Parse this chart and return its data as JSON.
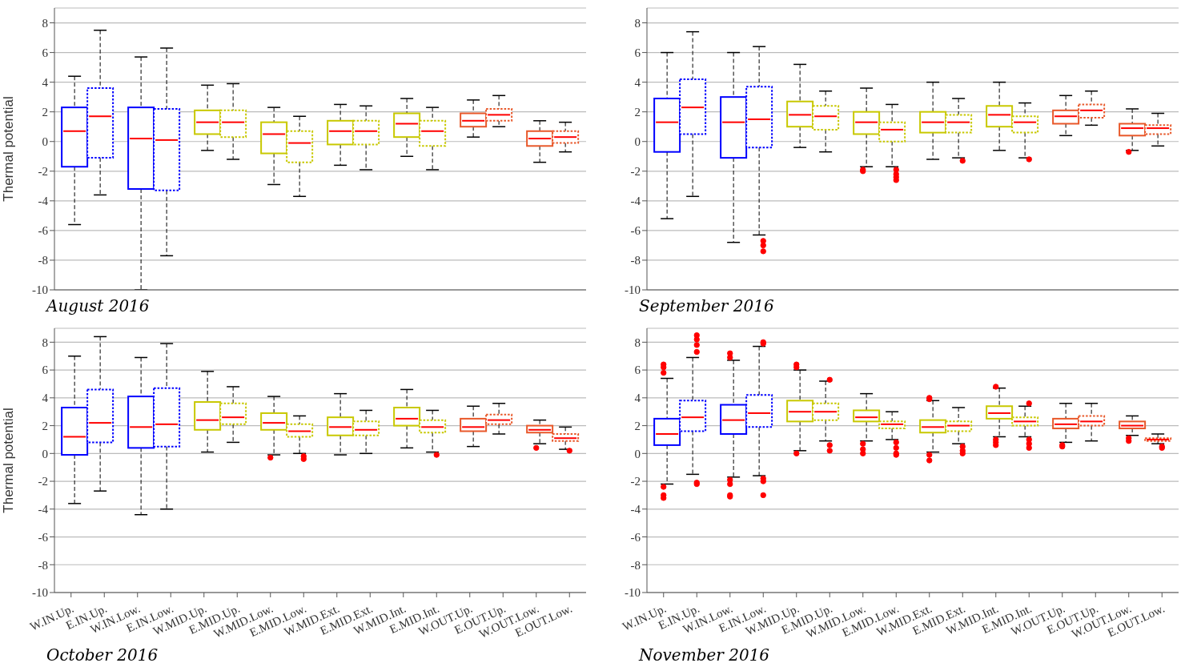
{
  "chart_data": [
    {
      "type": "box",
      "title": "August 2016",
      "ylabel": "Thermal potential",
      "tick_labels": "y",
      "grid": "y",
      "ylim": [
        -10,
        9
      ],
      "yticks": [
        -10,
        -8,
        -6,
        -4,
        -2,
        0,
        2,
        4,
        6,
        8
      ],
      "categories": [
        null,
        null,
        null,
        null,
        null,
        null,
        null,
        null,
        null,
        null,
        null,
        null,
        null,
        null,
        null,
        null
      ],
      "series": [
        {
          "line_style": "solid",
          "colors": [
            "#0000ff",
            null,
            "#0000ff",
            null,
            "#c8c800",
            null,
            "#c8c800",
            null,
            "#c8c800",
            null,
            "#c8c800",
            null,
            "#e8582a",
            null,
            "#e8582a",
            null
          ],
          "boxes": [
            {
              "low": -5.6,
              "q1": -1.7,
              "median": 0.7,
              "q3": 2.3,
              "high": 4.4
            },
            null,
            {
              "low": -10,
              "q1": -3.2,
              "median": 0.2,
              "q3": 2.3,
              "high": 5.7
            },
            null,
            {
              "low": -0.6,
              "q1": 0.5,
              "median": 1.3,
              "q3": 2.1,
              "high": 3.8
            },
            null,
            {
              "low": -2.9,
              "q1": -0.8,
              "median": 0.5,
              "q3": 1.3,
              "high": 2.3
            },
            null,
            {
              "low": -1.6,
              "q1": -0.2,
              "median": 0.7,
              "q3": 1.4,
              "high": 2.5
            },
            null,
            {
              "low": -1.0,
              "q1": 0.3,
              "median": 1.2,
              "q3": 1.9,
              "high": 2.9
            },
            null,
            {
              "low": 0.3,
              "q1": 1.0,
              "median": 1.4,
              "q3": 1.9,
              "high": 2.8
            },
            null,
            {
              "low": -1.4,
              "q1": -0.3,
              "median": 0.2,
              "q3": 0.7,
              "high": 1.4
            },
            null
          ]
        },
        {
          "line_style": "dotted",
          "colors": [
            null,
            "#0000ff",
            null,
            "#0000ff",
            null,
            "#c8c800",
            null,
            "#c8c800",
            null,
            "#c8c800",
            null,
            "#c8c800",
            null,
            "#e8582a",
            null,
            "#e8582a"
          ],
          "boxes": [
            null,
            {
              "low": -3.6,
              "q1": -1.1,
              "median": 1.7,
              "q3": 3.6,
              "high": 7.5
            },
            null,
            {
              "low": -7.7,
              "q1": -3.3,
              "median": 0.1,
              "q3": 2.2,
              "high": 6.3
            },
            null,
            {
              "low": -1.2,
              "q1": 0.3,
              "median": 1.3,
              "q3": 2.1,
              "high": 3.9
            },
            null,
            {
              "low": -3.7,
              "q1": -1.4,
              "median": -0.1,
              "q3": 0.7,
              "high": 1.7
            },
            null,
            {
              "low": -1.9,
              "q1": -0.2,
              "median": 0.7,
              "q3": 1.4,
              "high": 2.4
            },
            null,
            {
              "low": -1.9,
              "q1": -0.3,
              "median": 0.7,
              "q3": 1.4,
              "high": 2.3
            },
            null,
            {
              "low": 1.0,
              "q1": 1.4,
              "median": 1.8,
              "q3": 2.2,
              "high": 3.1
            },
            null,
            {
              "low": -0.7,
              "q1": -0.1,
              "median": 0.3,
              "q3": 0.7,
              "high": 1.3
            }
          ]
        }
      ]
    },
    {
      "type": "box",
      "title": "September 2016",
      "tick_labels": "y",
      "grid": "y",
      "ylim": [
        -10,
        9
      ],
      "yticks": [
        -10,
        -8,
        -6,
        -4,
        -2,
        0,
        2,
        4,
        6,
        8
      ],
      "categories": [
        null,
        null,
        null,
        null,
        null,
        null,
        null,
        null,
        null,
        null,
        null,
        null,
        null,
        null,
        null,
        null
      ],
      "series": [
        {
          "line_style": "solid",
          "colors": [
            "#0000ff",
            null,
            "#0000ff",
            null,
            "#c8c800",
            null,
            "#c8c800",
            null,
            "#c8c800",
            null,
            "#c8c800",
            null,
            "#e8582a",
            null,
            "#e8582a",
            null
          ],
          "boxes": [
            {
              "low": -5.2,
              "q1": -0.7,
              "median": 1.3,
              "q3": 2.9,
              "high": 6.0
            },
            null,
            {
              "low": -6.8,
              "q1": -1.1,
              "median": 1.3,
              "q3": 3.0,
              "high": 6.0
            },
            null,
            {
              "low": -0.4,
              "q1": 1.0,
              "median": 1.8,
              "q3": 2.7,
              "high": 5.2
            },
            null,
            {
              "low": -1.7,
              "q1": 0.5,
              "median": 1.3,
              "q3": 2.0,
              "high": 3.6,
              "outliers": [
                -1.9,
                -2.0
              ]
            },
            null,
            {
              "low": -1.2,
              "q1": 0.6,
              "median": 1.3,
              "q3": 2.0,
              "high": 4.0
            },
            null,
            {
              "low": -0.6,
              "q1": 1.0,
              "median": 1.8,
              "q3": 2.4,
              "high": 4.0
            },
            null,
            {
              "low": 0.4,
              "q1": 1.2,
              "median": 1.7,
              "q3": 2.1,
              "high": 3.1
            },
            null,
            {
              "low": -0.6,
              "q1": 0.4,
              "median": 0.9,
              "q3": 1.2,
              "high": 2.2,
              "outliers": [
                -0.7
              ]
            },
            null
          ]
        },
        {
          "line_style": "dotted",
          "colors": [
            null,
            "#0000ff",
            null,
            "#0000ff",
            null,
            "#c8c800",
            null,
            "#c8c800",
            null,
            "#c8c800",
            null,
            "#c8c800",
            null,
            "#e8582a",
            null,
            "#e8582a"
          ],
          "boxes": [
            null,
            {
              "low": -3.7,
              "q1": 0.5,
              "median": 2.3,
              "q3": 4.2,
              "high": 7.4
            },
            null,
            {
              "low": -6.3,
              "q1": -0.4,
              "median": 1.5,
              "q3": 3.7,
              "high": 6.4,
              "outliers": [
                -6.7,
                -7.0,
                -7.4
              ]
            },
            null,
            {
              "low": -0.7,
              "q1": 0.8,
              "median": 1.7,
              "q3": 2.4,
              "high": 3.4
            },
            null,
            {
              "low": -1.7,
              "q1": 0,
              "median": 0.8,
              "q3": 1.3,
              "high": 2.5,
              "outliers": [
                -1.9,
                -2.2,
                -2.4,
                -2.6
              ]
            },
            null,
            {
              "low": -1.1,
              "q1": 0.6,
              "median": 1.3,
              "q3": 1.8,
              "high": 2.9,
              "outliers": [
                -1.3
              ]
            },
            null,
            {
              "low": -1.1,
              "q1": 0.6,
              "median": 1.3,
              "q3": 1.7,
              "high": 2.6,
              "outliers": [
                -1.2
              ]
            },
            null,
            {
              "low": 1.1,
              "q1": 1.6,
              "median": 2.1,
              "q3": 2.5,
              "high": 3.4
            },
            null,
            {
              "low": -0.3,
              "q1": 0.5,
              "median": 0.9,
              "q3": 1.1,
              "high": 1.9
            }
          ]
        }
      ]
    },
    {
      "type": "box",
      "title": "October 2016",
      "ylabel": "Thermal potential",
      "grid": "y",
      "ylim": [
        -10,
        9
      ],
      "yticks": [
        -10,
        -8,
        -6,
        -4,
        -2,
        0,
        2,
        4,
        6,
        8
      ],
      "categories": [
        "W.IN.Up.",
        "E.IN.Up.",
        "W.IN.Low.",
        "E.IN.Low.",
        "W.MID.Up.",
        "E.MID.Up.",
        "W.MID.Low.",
        "E.MID.Low.",
        "W.MID.Ext.",
        "E.MID.Ext.",
        "W.MID.Int.",
        "E.MID.Int.",
        "W.OUT.Up.",
        "E.OUT.Up.",
        "W.OUT.Low.",
        "E.OUT.Low."
      ],
      "series": [
        {
          "line_style": "solid",
          "colors": [
            "#0000ff",
            null,
            "#0000ff",
            null,
            "#c8c800",
            null,
            "#c8c800",
            null,
            "#c8c800",
            null,
            "#c8c800",
            null,
            "#e8582a",
            null,
            "#e8582a",
            null
          ],
          "boxes": [
            {
              "low": -3.6,
              "q1": -0.1,
              "median": 1.2,
              "q3": 3.3,
              "high": 7.0
            },
            null,
            {
              "low": -4.4,
              "q1": 0.4,
              "median": 1.9,
              "q3": 4.1,
              "high": 6.9
            },
            null,
            {
              "low": 0.1,
              "q1": 1.7,
              "median": 2.4,
              "q3": 3.7,
              "high": 5.9
            },
            null,
            {
              "low": -0.1,
              "q1": 1.7,
              "median": 2.2,
              "q3": 2.9,
              "high": 4.1,
              "outliers": [
                -0.3
              ]
            },
            null,
            {
              "low": -0.1,
              "q1": 1.3,
              "median": 1.9,
              "q3": 2.6,
              "high": 4.3
            },
            null,
            {
              "low": 0.4,
              "q1": 2.0,
              "median": 2.5,
              "q3": 3.3,
              "high": 4.6
            },
            null,
            {
              "low": 0.5,
              "q1": 1.6,
              "median": 1.9,
              "q3": 2.5,
              "high": 3.4
            },
            null,
            {
              "low": 0.7,
              "q1": 1.5,
              "median": 1.7,
              "q3": 2.0,
              "high": 2.4,
              "outliers": [
                0.4
              ]
            },
            null
          ]
        },
        {
          "line_style": "dotted",
          "colors": [
            null,
            "#0000ff",
            null,
            "#0000ff",
            null,
            "#c8c800",
            null,
            "#c8c800",
            null,
            "#c8c800",
            null,
            "#c8c800",
            null,
            "#e8582a",
            null,
            "#e8582a"
          ],
          "boxes": [
            null,
            {
              "low": -2.7,
              "q1": 0.8,
              "median": 2.2,
              "q3": 4.6,
              "high": 8.4
            },
            null,
            {
              "low": -4.0,
              "q1": 0.5,
              "median": 2.1,
              "q3": 4.7,
              "high": 7.9
            },
            null,
            {
              "low": 0.8,
              "q1": 2.1,
              "median": 2.6,
              "q3": 3.6,
              "high": 4.8
            },
            null,
            {
              "low": 0,
              "q1": 1.2,
              "median": 1.6,
              "q3": 2.1,
              "high": 2.7,
              "outliers": [
                -0.2,
                -0.4
              ]
            },
            null,
            {
              "low": 0,
              "q1": 1.3,
              "median": 1.7,
              "q3": 2.3,
              "high": 3.1
            },
            null,
            {
              "low": 0.1,
              "q1": 1.5,
              "median": 1.9,
              "q3": 2.4,
              "high": 3.1,
              "outliers": [
                -0.1
              ]
            },
            null,
            {
              "low": 1.4,
              "q1": 2.1,
              "median": 2.4,
              "q3": 2.8,
              "high": 3.6
            },
            null,
            {
              "low": 0.3,
              "q1": 0.9,
              "median": 1.1,
              "q3": 1.4,
              "high": 1.9,
              "outliers": [
                0.2
              ]
            }
          ]
        }
      ]
    },
    {
      "type": "box",
      "title": "November 2016",
      "grid": "y",
      "ylim": [
        -10,
        9
      ],
      "yticks": [
        -10,
        -8,
        -6,
        -4,
        -2,
        0,
        2,
        4,
        6,
        8
      ],
      "categories": [
        "W.IN.Up.",
        "E.IN.Up.",
        "W.IN.Low.",
        "E.IN.Low.",
        "W.MID.Up.",
        "E.MID.Up.",
        "W.MID.Low.",
        "E.MID.Low.",
        "W.MID.Ext.",
        "E.MID.Ext.",
        "W.MID.Int.",
        "E.MID.Int.",
        "W.OUT.Up.",
        "E.OUT.Up.",
        "W.OUT.Low.",
        "E.OUT.Low."
      ],
      "series": [
        {
          "line_style": "solid",
          "colors": [
            "#0000ff",
            null,
            "#0000ff",
            null,
            "#c8c800",
            null,
            "#c8c800",
            null,
            "#c8c800",
            null,
            "#c8c800",
            null,
            "#e8582a",
            null,
            "#e8582a",
            null
          ],
          "boxes": [
            {
              "low": -2.2,
              "q1": 0.6,
              "median": 1.4,
              "q3": 2.5,
              "high": 5.4,
              "outliers": [
                5.8,
                6.2,
                6.4,
                -2.4,
                -3.0,
                -3.2
              ]
            },
            null,
            {
              "low": -1.7,
              "q1": 1.4,
              "median": 2.4,
              "q3": 3.5,
              "high": 6.7,
              "outliers": [
                6.9,
                7.2,
                -1.9,
                -2.2,
                -3.0,
                -3.1
              ]
            },
            null,
            {
              "low": 0.2,
              "q1": 2.3,
              "median": 3.0,
              "q3": 3.8,
              "high": 6.0,
              "outliers": [
                6.2,
                6.4,
                0.0
              ]
            },
            null,
            {
              "low": 0.9,
              "q1": 2.3,
              "median": 2.6,
              "q3": 3.1,
              "high": 4.3,
              "outliers": [
                0.7,
                0.3,
                0.0
              ]
            },
            null,
            {
              "low": 0.1,
              "q1": 1.5,
              "median": 1.9,
              "q3": 2.4,
              "high": 3.8,
              "outliers": [
                3.9,
                4.0,
                -0.1,
                -0.5
              ]
            },
            null,
            {
              "low": 1.2,
              "q1": 2.5,
              "median": 2.9,
              "q3": 3.4,
              "high": 4.7,
              "outliers": [
                4.8,
                1.0,
                0.8,
                0.6
              ]
            },
            null,
            {
              "low": 0.8,
              "q1": 1.8,
              "median": 2.1,
              "q3": 2.5,
              "high": 3.6,
              "outliers": [
                0.6,
                0.5
              ]
            },
            null,
            {
              "low": 1.3,
              "q1": 1.8,
              "median": 2.0,
              "q3": 2.3,
              "high": 2.7,
              "outliers": [
                1.1,
                0.9
              ]
            },
            null
          ]
        },
        {
          "line_style": "dotted",
          "colors": [
            null,
            "#0000ff",
            null,
            "#0000ff",
            null,
            "#c8c800",
            null,
            "#c8c800",
            null,
            "#c8c800",
            null,
            "#c8c800",
            null,
            "#e8582a",
            null,
            "#e8582a"
          ],
          "boxes": [
            null,
            {
              "low": -1.5,
              "q1": 1.6,
              "median": 2.6,
              "q3": 3.8,
              "high": 6.9,
              "outliers": [
                7.3,
                7.8,
                8.2,
                8.5,
                -2.1,
                -2.2
              ]
            },
            null,
            {
              "low": -1.6,
              "q1": 1.9,
              "median": 2.9,
              "q3": 4.2,
              "high": 7.7,
              "outliers": [
                7.9,
                8.0,
                -1.8,
                -2.0,
                -3.0
              ]
            },
            null,
            {
              "low": 0.9,
              "q1": 2.4,
              "median": 3.0,
              "q3": 3.6,
              "high": 5.2,
              "outliers": [
                5.3,
                0.6,
                0.2
              ]
            },
            null,
            {
              "low": 1.0,
              "q1": 1.8,
              "median": 2.1,
              "q3": 2.3,
              "high": 3.0,
              "outliers": [
                0.8,
                0.4,
                0.0,
                -0.1
              ]
            },
            null,
            {
              "low": 0.7,
              "q1": 1.6,
              "median": 2.0,
              "q3": 2.3,
              "high": 3.3,
              "outliers": [
                0.5,
                0.2,
                0.0
              ]
            },
            null,
            {
              "low": 1.2,
              "q1": 2.0,
              "median": 2.3,
              "q3": 2.6,
              "high": 3.4,
              "outliers": [
                3.6,
                1.0,
                0.7,
                0.4
              ]
            },
            null,
            {
              "low": 0.9,
              "q1": 2.0,
              "median": 2.3,
              "q3": 2.7,
              "high": 3.6
            },
            null,
            {
              "low": 0.7,
              "q1": 0.9,
              "median": 1.0,
              "q3": 1.1,
              "high": 1.4,
              "outliers": [
                0.5,
                0.4
              ]
            }
          ]
        }
      ]
    }
  ]
}
